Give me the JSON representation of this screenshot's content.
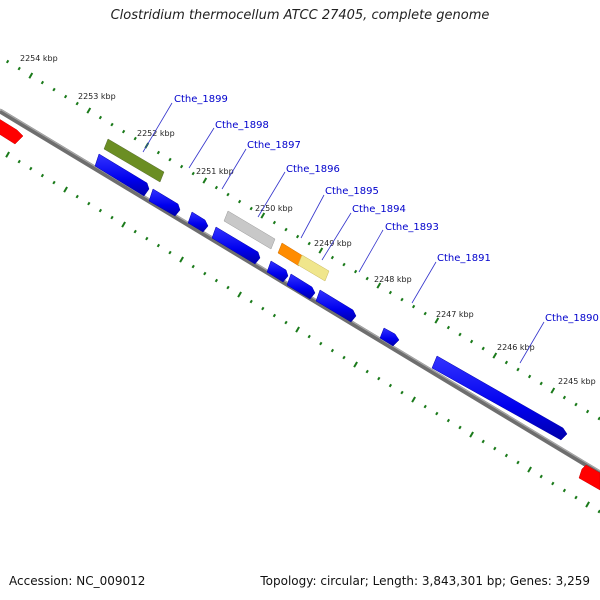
{
  "title": "Clostridium thermocellum ATCC 27405, complete genome",
  "footer": {
    "accession": "Accession: NC_009012",
    "summary": "Topology: circular; Length: 3,843,301 bp; Genes: 3,259"
  },
  "colors": {
    "backbone": "#808080",
    "tick": "#1a7a1a",
    "gene_blue": "#0000ee",
    "gene_red": "#ff0000",
    "olive": "#6b8e23",
    "gray": "#c0c0c0",
    "orange": "#ff8c00",
    "pale_yellow": "#f0e68c",
    "label": "#0000cc"
  },
  "kbp_labels": [
    "2254 kbp",
    "2253 kbp",
    "2252 kbp",
    "2251 kbp",
    "2250 kbp",
    "2249 kbp",
    "2248 kbp",
    "2247 kbp",
    "2246 kbp",
    "2245 kbp"
  ],
  "gene_labels": [
    "Cthe_1899",
    "Cthe_1898",
    "Cthe_1897",
    "Cthe_1896",
    "Cthe_1895",
    "Cthe_1894",
    "Cthe_1893",
    "Cthe_1891",
    "Cthe_1890"
  ]
}
